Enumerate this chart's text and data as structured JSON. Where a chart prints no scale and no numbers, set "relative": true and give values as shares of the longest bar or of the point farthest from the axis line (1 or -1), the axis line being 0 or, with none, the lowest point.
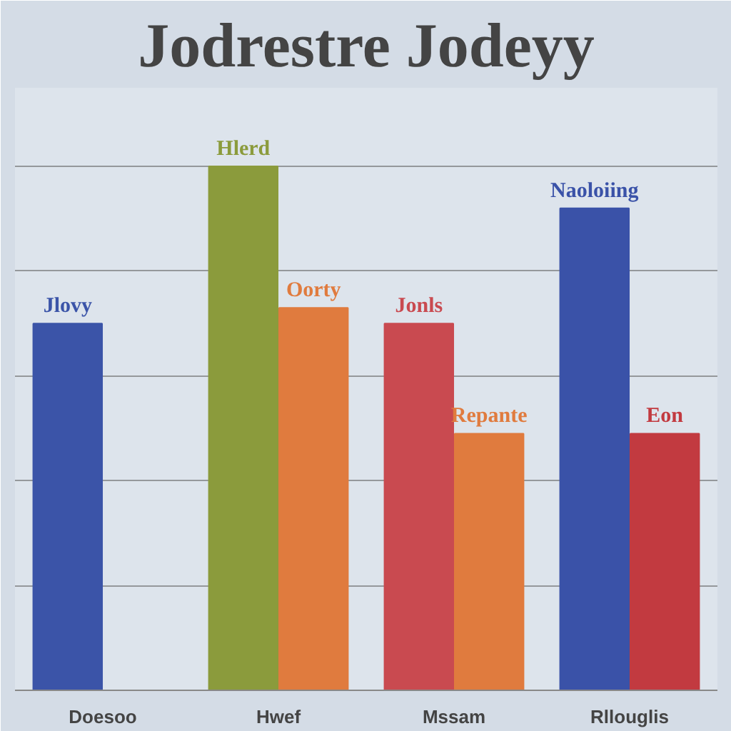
{
  "chart_data": {
    "type": "bar",
    "title": "Jodrestre Jodeyy",
    "relative": true,
    "grid": "y",
    "categories": [
      "Doesoo",
      "Hwef",
      "Mssam",
      "Rllouglis"
    ],
    "series": [
      {
        "colors": [
          "#3b54a8",
          "#8b9b3c",
          "#c94a50",
          "#3a52a8"
        ],
        "values": [
          0.7,
          1,
          0.7,
          0.92
        ]
      },
      {
        "colors": [
          null,
          "#e07b3e",
          "#e07b3e",
          "#c23a40"
        ],
        "values": [
          null,
          0.73,
          0.49,
          0.49
        ]
      }
    ],
    "annotations": [
      {
        "text": "Jlovy",
        "x": "Doesoo",
        "y": 0.7
      },
      {
        "text": "Hlerd",
        "x": "Hwef",
        "y": 1
      },
      {
        "text": "Oorty",
        "x": "Hwef",
        "y": 0.73
      },
      {
        "text": "Jonls",
        "x": "Mssam",
        "y": 0.7
      },
      {
        "text": "Repante",
        "x": "Mssam",
        "y": 0.49
      },
      {
        "text": "Naoloiing",
        "x": "Rllouglis",
        "y": 0.92
      },
      {
        "text": "Eon",
        "x": "Rllouglis",
        "y": 0.49
      }
    ]
  }
}
